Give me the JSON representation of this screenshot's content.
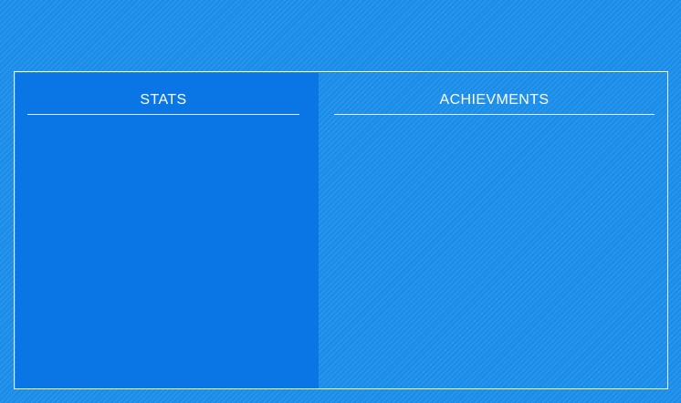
{
  "panels": {
    "stats": {
      "title": "STATS"
    },
    "achievements": {
      "title": "ACHIEVMENTS"
    }
  },
  "colors": {
    "background": "#1a8de9",
    "stats_panel": "#0a76e6",
    "text": "#ffffff",
    "frame_border": "#ffffff"
  }
}
